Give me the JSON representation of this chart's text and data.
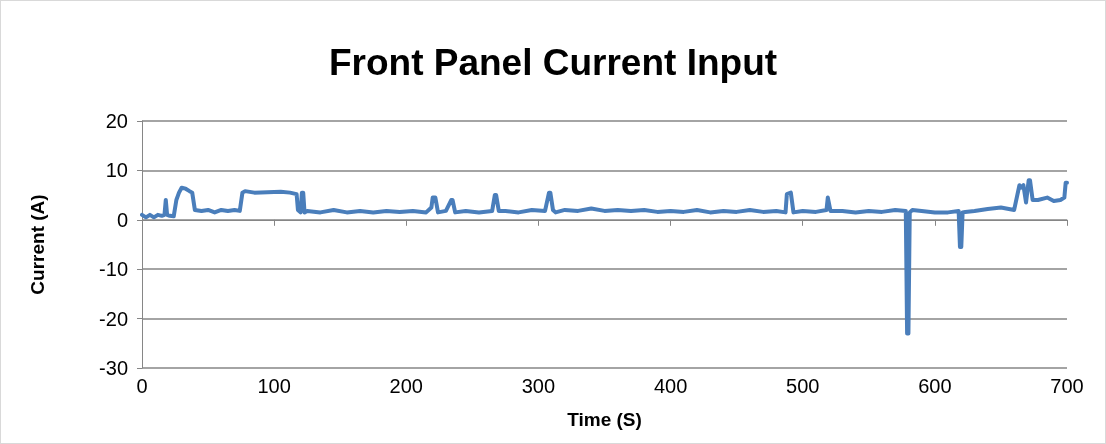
{
  "chart_data": {
    "type": "line",
    "title": "Front Panel Current Input",
    "xlabel": "Time (S)",
    "ylabel": "Current (A)",
    "xlim": [
      0,
      700
    ],
    "xticks": [
      0,
      100,
      200,
      300,
      400,
      500,
      600,
      700
    ],
    "ylim": [
      -30,
      20
    ],
    "yticks": [
      -30,
      -20,
      -10,
      0,
      10,
      20
    ],
    "grid": "y",
    "marker": "none",
    "line_style": "solid",
    "series": [
      {
        "color": "#4a7ebb",
        "x": [
          0,
          3,
          6,
          9,
          12,
          15,
          17,
          18,
          19,
          21,
          24,
          26,
          28,
          30,
          33,
          36,
          38,
          40,
          45,
          50,
          55,
          60,
          65,
          70,
          74,
          76,
          78,
          85,
          95,
          105,
          112,
          117,
          118,
          120,
          121,
          122,
          123,
          125,
          135,
          145,
          155,
          165,
          175,
          185,
          195,
          205,
          215,
          219,
          220,
          222,
          224,
          230,
          234,
          235,
          237,
          245,
          255,
          265,
          267,
          268,
          270,
          275,
          285,
          295,
          305,
          308,
          309,
          311,
          313,
          320,
          330,
          340,
          350,
          360,
          370,
          380,
          390,
          400,
          410,
          420,
          430,
          440,
          450,
          460,
          470,
          480,
          487,
          488,
          491,
          493,
          500,
          510,
          518,
          519,
          521,
          530,
          540,
          550,
          560,
          570,
          578,
          579,
          580,
          581,
          583,
          590,
          600,
          610,
          618,
          619,
          620,
          621,
          623,
          630,
          640,
          650,
          660,
          664,
          665,
          667,
          669,
          671,
          672,
          674,
          678,
          685,
          690,
          695,
          698,
          699,
          700
        ],
        "values": [
          1,
          0.5,
          1,
          0.5,
          1,
          0.8,
          1,
          4,
          1,
          0.8,
          0.7,
          4,
          5.5,
          6.5,
          6.3,
          5.8,
          5.5,
          2,
          1.8,
          2,
          1.5,
          2,
          1.8,
          2,
          1.8,
          5.5,
          5.8,
          5.5,
          5.6,
          5.7,
          5.5,
          5.2,
          2,
          1.5,
          5.5,
          5.5,
          1.5,
          1.8,
          1.5,
          2,
          1.5,
          1.8,
          1.5,
          1.8,
          1.6,
          1.8,
          1.5,
          2.5,
          4.5,
          4.5,
          1.5,
          1.8,
          4,
          4,
          1.5,
          1.8,
          1.5,
          1.8,
          5,
          5,
          1.8,
          1.8,
          1.5,
          2,
          1.8,
          5.5,
          5.5,
          2,
          1.5,
          2,
          1.8,
          2.3,
          1.8,
          2,
          1.8,
          2,
          1.6,
          1.8,
          1.6,
          2,
          1.5,
          1.8,
          1.6,
          2,
          1.6,
          1.8,
          1.5,
          5.2,
          5.5,
          1.5,
          1.8,
          1.6,
          2,
          4.5,
          1.8,
          1.8,
          1.5,
          1.8,
          1.6,
          2,
          1.8,
          -23,
          -23,
          1.5,
          2,
          1.8,
          1.5,
          1.5,
          1.8,
          -5.5,
          -5.5,
          1.5,
          1.6,
          1.8,
          2.2,
          2.5,
          2,
          7,
          6.5,
          7,
          3.5,
          8,
          8,
          4,
          4,
          4.5,
          3.8,
          4,
          4.5,
          7.5,
          7.5
        ]
      }
    ]
  }
}
